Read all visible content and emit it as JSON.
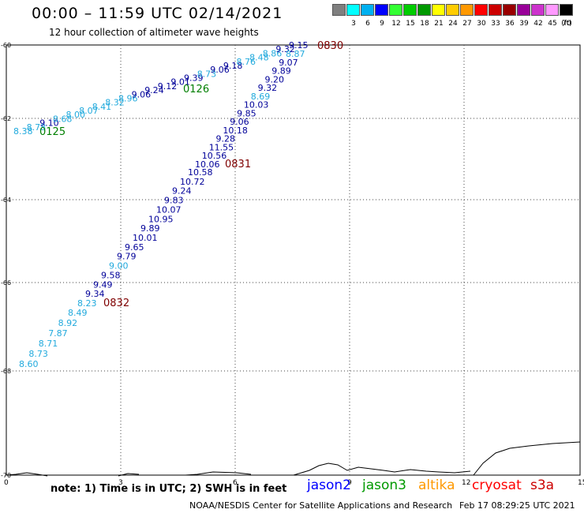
{
  "header": {
    "title": "00:00 – 11:59 UTC 02/14/2021",
    "subtitle": "12 hour collection of altimeter wave heights"
  },
  "legend": {
    "swatches": [
      {
        "label": "",
        "color": "#7f7f7f"
      },
      {
        "label": "3",
        "color": "#00ffff"
      },
      {
        "label": "6",
        "color": "#00b0f0"
      },
      {
        "label": "9",
        "color": "#0000ff"
      },
      {
        "label": "12",
        "color": "#33ff33"
      },
      {
        "label": "15",
        "color": "#00cc00"
      },
      {
        "label": "18",
        "color": "#009900"
      },
      {
        "label": "21",
        "color": "#ffff00"
      },
      {
        "label": "24",
        "color": "#ffcc00"
      },
      {
        "label": "27",
        "color": "#ff9900"
      },
      {
        "label": "30",
        "color": "#ff0000"
      },
      {
        "label": "33",
        "color": "#cc0000"
      },
      {
        "label": "36",
        "color": "#990000"
      },
      {
        "label": "39",
        "color": "#990099"
      },
      {
        "label": "42",
        "color": "#cc33cc"
      },
      {
        "label": "45",
        "color": "#ff99ff"
      },
      {
        "label": "70",
        "color": "#000000"
      }
    ],
    "unit": "(ft)"
  },
  "map": {
    "lat_labels": [
      "-60",
      "-62",
      "-64",
      "-66",
      "-68",
      "-70"
    ],
    "lon_labels": [
      "0",
      "3",
      "6",
      "9",
      "12",
      "15"
    ]
  },
  "tracks": [
    {
      "name": "0125",
      "label_color": "#007f00",
      "color": "#22aadd",
      "values": [
        "8.38",
        "8.78",
        "9.10",
        "8.68",
        "8.00",
        "8.07",
        "8.41",
        "8.32",
        "8.96",
        "9.06",
        "9.24",
        "9.12",
        "9.01",
        "9.39",
        "8.73",
        "9.06",
        "9.18",
        "8.76",
        "8.48",
        "8.86",
        "9.32",
        "9.15"
      ],
      "colors": [
        "#22aadd",
        "#22aadd",
        "#000099",
        "#22aadd",
        "#22aadd",
        "#22aadd",
        "#22aadd",
        "#22aadd",
        "#22aadd",
        "#000099",
        "#000099",
        "#000099",
        "#000099",
        "#000099",
        "#22aadd",
        "#000099",
        "#000099",
        "#22aadd",
        "#22aadd",
        "#22aadd",
        "#000099",
        "#000099"
      ]
    },
    {
      "name": "0126",
      "label_color": "#007f00"
    },
    {
      "name": "0830",
      "label_color": "#7f0000",
      "values": [
        "8.87",
        "9.07",
        "9.89",
        "9.20",
        "9.32",
        "8.69",
        "10.03",
        "9.85",
        "9.06",
        "10.18",
        "9.28",
        "11.55",
        "10.56",
        "10.06"
      ],
      "colors": [
        "#22aadd",
        "#000099",
        "#000099",
        "#000099",
        "#000099",
        "#22aadd",
        "#000099",
        "#000099",
        "#000099",
        "#000099",
        "#000099",
        "#000099",
        "#000099",
        "#000099"
      ]
    },
    {
      "name": "0831",
      "label_color": "#7f0000",
      "values": [
        "10.58",
        "10.72",
        "9.24",
        "9.83",
        "10.07",
        "10.95",
        "9.89",
        "10.01",
        "9.65",
        "9.79",
        "9.00",
        "9.58",
        "9.49",
        "9.34",
        "8.23"
      ],
      "colors": [
        "#000099",
        "#000099",
        "#000099",
        "#000099",
        "#000099",
        "#000099",
        "#000099",
        "#000099",
        "#000099",
        "#000099",
        "#22aadd",
        "#000099",
        "#000099",
        "#000099",
        "#22aadd"
      ]
    },
    {
      "name": "0832",
      "label_color": "#7f0000",
      "values": [
        "8.49",
        "8.92",
        "7.87",
        "8.71",
        "8.73",
        "8.60"
      ],
      "colors": [
        "#22aadd",
        "#22aadd",
        "#22aadd",
        "#22aadd",
        "#22aadd",
        "#22aadd"
      ]
    }
  ],
  "footer": {
    "note": "note: 1) Time is in UTC; 2) SWH is in feet",
    "satellites": [
      {
        "name": "jason2",
        "color": "#0000ff"
      },
      {
        "name": "jason3",
        "color": "#009900"
      },
      {
        "name": "altika",
        "color": "#ff9900"
      },
      {
        "name": "cryosat",
        "color": "#ff0000"
      },
      {
        "name": "s3a",
        "color": "#cc0000"
      }
    ],
    "credit": "NOAA/NESDIS Center for Satellite Applications and Research",
    "timestamp": "Feb 17 08:29:25 UTC 2021"
  }
}
